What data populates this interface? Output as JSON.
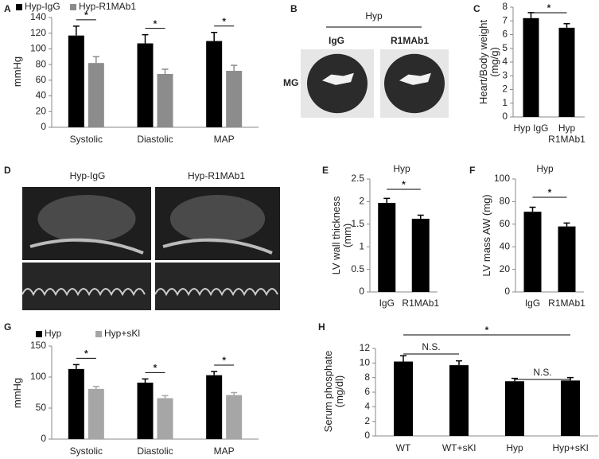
{
  "chart_data": [
    {
      "type": "bar",
      "panel": "A",
      "ylabel": "mmHg",
      "categories": [
        "Systolic",
        "Diastolic",
        "MAP"
      ],
      "series": [
        {
          "name": "Hyp-IgG",
          "color": "#000000",
          "values": [
            117,
            107,
            110
          ],
          "errors": [
            12,
            11,
            11
          ]
        },
        {
          "name": "Hyp-R1MAb1",
          "color": "#8c8c8c",
          "values": [
            82,
            68,
            72
          ],
          "errors": [
            8,
            6,
            7
          ]
        }
      ],
      "ylim": [
        0,
        140
      ],
      "yticks": [
        0,
        20,
        40,
        60,
        80,
        100,
        120,
        140
      ],
      "annotations": [
        "*",
        "*",
        "*"
      ]
    },
    {
      "type": "image",
      "panel": "B",
      "title": "Hyp",
      "labels": [
        "IgG",
        "R1MAb1"
      ],
      "row_label": "MG"
    },
    {
      "type": "bar",
      "panel": "C",
      "ylabel": "Heart/Body weight (mg/g)",
      "categories": [
        "Hyp IgG",
        "Hyp R1MAb1"
      ],
      "values": [
        7.2,
        6.5
      ],
      "errors": [
        0.4,
        0.3
      ],
      "color": "#000000",
      "ylim": [
        0,
        8
      ],
      "yticks": [
        0,
        1,
        2,
        3,
        4,
        5,
        6,
        7,
        8
      ],
      "annotations": [
        "*"
      ]
    },
    {
      "type": "image",
      "panel": "D",
      "labels": [
        "Hyp-IgG",
        "Hyp-R1MAb1"
      ]
    },
    {
      "type": "bar",
      "panel": "E",
      "title": "Hyp",
      "ylabel": "LV wall thickness (mm)",
      "categories": [
        "IgG",
        "R1MAb1"
      ],
      "values": [
        1.97,
        1.62
      ],
      "errors": [
        0.1,
        0.08
      ],
      "color": "#000000",
      "ylim": [
        0,
        2.5
      ],
      "yticks": [
        0,
        0.5,
        1,
        1.5,
        2,
        2.5
      ],
      "annotations": [
        "*"
      ]
    },
    {
      "type": "bar",
      "panel": "F",
      "title": "Hyp",
      "ylabel": "LV mass AW (mg)",
      "categories": [
        "IgG",
        "R1MAb1"
      ],
      "values": [
        71,
        58
      ],
      "errors": [
        4,
        3
      ],
      "color": "#000000",
      "ylim": [
        0,
        100
      ],
      "yticks": [
        0,
        20,
        40,
        60,
        80,
        100
      ],
      "annotations": [
        "*"
      ]
    },
    {
      "type": "bar",
      "panel": "G",
      "ylabel": "mmHg",
      "categories": [
        "Systolic",
        "Diastolic",
        "MAP"
      ],
      "series": [
        {
          "name": "Hyp",
          "color": "#000000",
          "values": [
            113,
            91,
            103
          ],
          "errors": [
            7,
            6,
            6
          ]
        },
        {
          "name": "Hyp+sKl",
          "color": "#a6a6a6",
          "values": [
            81,
            66,
            71
          ],
          "errors": [
            4,
            4,
            4
          ]
        }
      ],
      "ylim": [
        0,
        150
      ],
      "yticks": [
        0,
        50,
        100,
        150
      ],
      "annotations": [
        "*",
        "*",
        "*"
      ]
    },
    {
      "type": "bar",
      "panel": "H",
      "ylabel": "Serum phosphate (mg/dl)",
      "categories": [
        "WT",
        "WT+sKl",
        "Hyp",
        "Hyp+sKl"
      ],
      "values": [
        10.2,
        9.7,
        7.5,
        7.6
      ],
      "errors": [
        0.8,
        0.6,
        0.4,
        0.4
      ],
      "color": "#000000",
      "ylim": [
        0,
        12
      ],
      "yticks": [
        0,
        2,
        4,
        6,
        8,
        10,
        12
      ],
      "annotations": [
        "N.S.",
        "N.S.",
        "*"
      ]
    }
  ]
}
